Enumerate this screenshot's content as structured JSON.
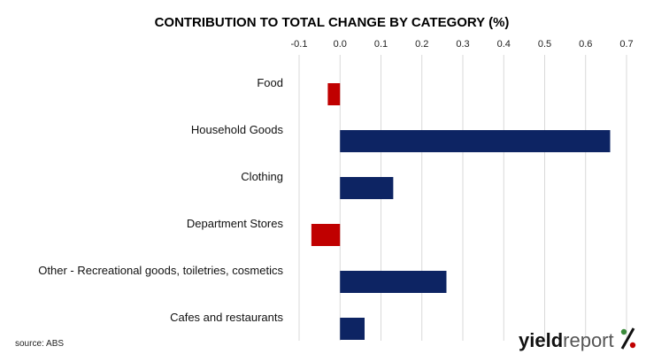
{
  "chart_data": {
    "type": "bar",
    "orientation": "horizontal",
    "title": "CONTRIBUTION TO TOTAL CHANGE BY CATEGORY (%)",
    "xlabel": "",
    "ylabel": "",
    "xlim": [
      -0.1,
      0.7
    ],
    "xticks": [
      "-0.1",
      "0.0",
      "0.1",
      "0.2",
      "0.3",
      "0.4",
      "0.5",
      "0.6",
      "0.7"
    ],
    "grid": true,
    "categories": [
      "Food",
      "Household Goods",
      "Clothing",
      "Department Stores",
      "Other - Recreational goods, toiletries, cosmetics",
      "Cafes and restaurants"
    ],
    "values": [
      -0.03,
      0.66,
      0.13,
      -0.07,
      0.26,
      0.06
    ],
    "colors": {
      "positive": "#0d2463",
      "negative": "#c00000"
    }
  },
  "source": "source: ABS",
  "logo": {
    "text_dark": "yield",
    "text_light": "report",
    "symbol": "%",
    "color_dark": "#111111",
    "color_light": "#555555",
    "color_green": "#3a8a3a",
    "color_red": "#c00000"
  }
}
